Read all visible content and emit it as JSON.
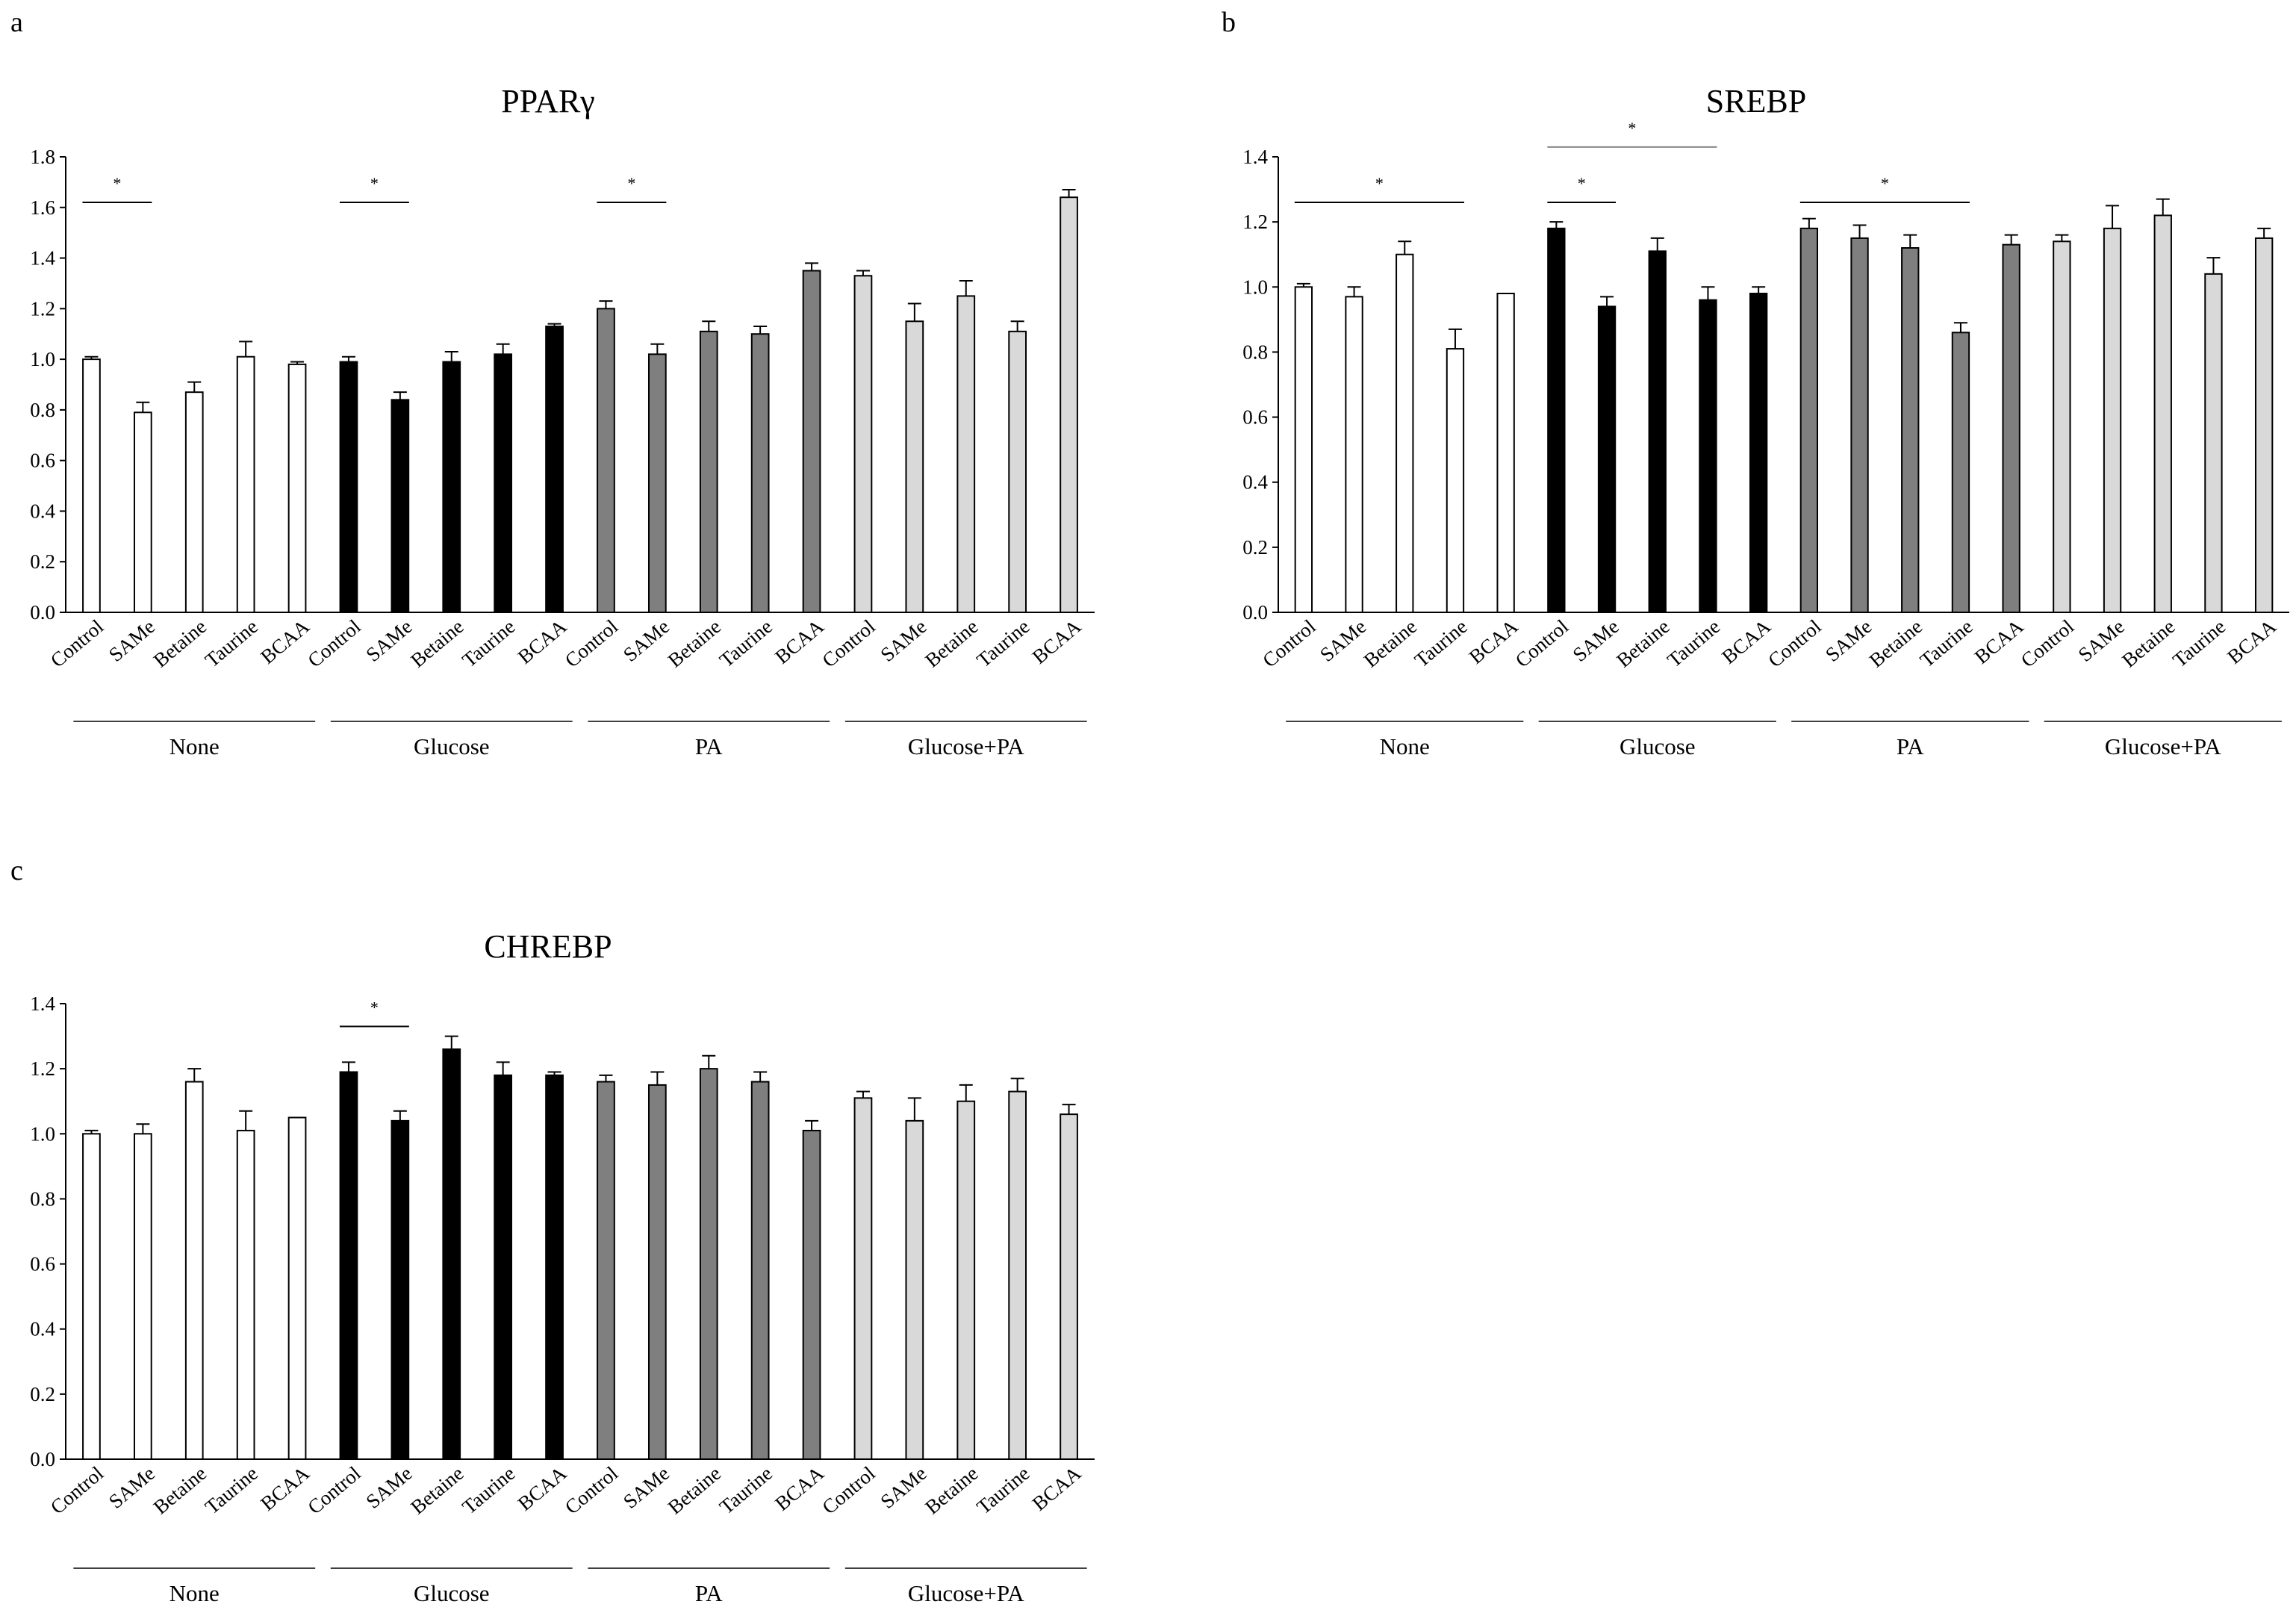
{
  "figure_colors": {
    "None": "#ffffff",
    "Glucose": "#000000",
    "PA": "#7f7f7f",
    "Glucose+PA": "#d9d9d9"
  },
  "chart_data": [
    {
      "panel": "a",
      "type": "bar",
      "title": "PPARγ",
      "ylim": [
        0,
        1.8
      ],
      "yticks": [
        "0.0",
        "0.2",
        "0.4",
        "0.6",
        "0.8",
        "1.0",
        "1.2",
        "1.4",
        "1.6",
        "1.8"
      ],
      "groups": [
        {
          "name": "None",
          "categories": [
            "Control",
            "SAMe",
            "Betaine",
            "Taurine",
            "BCAA"
          ],
          "values": [
            1.0,
            0.79,
            0.87,
            1.01,
            0.98
          ],
          "errors": [
            0.01,
            0.04,
            0.04,
            0.06,
            0.01
          ]
        },
        {
          "name": "Glucose",
          "categories": [
            "Control",
            "SAMe",
            "Betaine",
            "Taurine",
            "BCAA"
          ],
          "values": [
            0.99,
            0.84,
            0.99,
            1.02,
            1.13
          ],
          "errors": [
            0.02,
            0.03,
            0.04,
            0.04,
            0.01
          ]
        },
        {
          "name": "PA",
          "categories": [
            "Control",
            "SAMe",
            "Betaine",
            "Taurine",
            "BCAA"
          ],
          "values": [
            1.2,
            1.02,
            1.11,
            1.1,
            1.35
          ],
          "errors": [
            0.03,
            0.04,
            0.04,
            0.03,
            0.03
          ]
        },
        {
          "name": "Glucose+PA",
          "categories": [
            "Control",
            "SAMe",
            "Betaine",
            "Taurine",
            "BCAA"
          ],
          "values": [
            1.33,
            1.15,
            1.25,
            1.11,
            1.64
          ],
          "errors": [
            0.02,
            0.07,
            0.06,
            0.04,
            0.03
          ]
        }
      ],
      "annotations": [
        {
          "text": "*",
          "from_bar": 0,
          "to_bar": 1,
          "y": 1.62
        },
        {
          "text": "*",
          "from_bar": 5,
          "to_bar": 6,
          "y": 1.62
        },
        {
          "text": "*",
          "from_bar": 10,
          "to_bar": 11,
          "y": 1.62
        }
      ]
    },
    {
      "panel": "b",
      "type": "bar",
      "title": "SREBP",
      "ylim": [
        0,
        1.4
      ],
      "yticks": [
        "0.0",
        "0.2",
        "0.4",
        "0.6",
        "0.8",
        "1.0",
        "1.2",
        "1.4"
      ],
      "groups": [
        {
          "name": "None",
          "categories": [
            "Control",
            "SAMe",
            "Betaine",
            "Taurine",
            "BCAA"
          ],
          "values": [
            1.0,
            0.97,
            1.1,
            0.81,
            0.98
          ],
          "errors": [
            0.01,
            0.03,
            0.04,
            0.06,
            0.0
          ]
        },
        {
          "name": "Glucose",
          "categories": [
            "Control",
            "SAMe",
            "Betaine",
            "Taurine",
            "BCAA"
          ],
          "values": [
            1.18,
            0.94,
            1.11,
            0.96,
            0.98
          ],
          "errors": [
            0.02,
            0.03,
            0.04,
            0.04,
            0.02
          ]
        },
        {
          "name": "PA",
          "categories": [
            "Control",
            "SAMe",
            "Betaine",
            "Taurine",
            "BCAA"
          ],
          "values": [
            1.18,
            1.15,
            1.12,
            0.86,
            1.13
          ],
          "errors": [
            0.03,
            0.04,
            0.04,
            0.03,
            0.03
          ]
        },
        {
          "name": "Glucose+PA",
          "categories": [
            "Control",
            "SAMe",
            "Betaine",
            "Taurine",
            "BCAA"
          ],
          "values": [
            1.14,
            1.18,
            1.22,
            1.04,
            1.15
          ],
          "errors": [
            0.02,
            0.07,
            0.05,
            0.05,
            0.03
          ]
        }
      ],
      "annotations": [
        {
          "text": "*",
          "from_bar": 0,
          "to_bar": 3,
          "y": 1.26
        },
        {
          "text": "*",
          "from_bar": 5,
          "to_bar": 6,
          "y": 1.26
        },
        {
          "text": "*",
          "from_bar": 5,
          "to_bar": 8,
          "y": 1.43
        },
        {
          "text": "*",
          "from_bar": 10,
          "to_bar": 13,
          "y": 1.26
        }
      ]
    },
    {
      "panel": "c",
      "type": "bar",
      "title": "CHREBP",
      "ylim": [
        0,
        1.4
      ],
      "yticks": [
        "0.0",
        "0.2",
        "0.4",
        "0.6",
        "0.8",
        "1.0",
        "1.2",
        "1.4"
      ],
      "groups": [
        {
          "name": "None",
          "categories": [
            "Control",
            "SAMe",
            "Betaine",
            "Taurine",
            "BCAA"
          ],
          "values": [
            1.0,
            1.0,
            1.16,
            1.01,
            1.05
          ],
          "errors": [
            0.01,
            0.03,
            0.04,
            0.06,
            0.0
          ]
        },
        {
          "name": "Glucose",
          "categories": [
            "Control",
            "SAMe",
            "Betaine",
            "Taurine",
            "BCAA"
          ],
          "values": [
            1.19,
            1.04,
            1.26,
            1.18,
            1.18
          ],
          "errors": [
            0.03,
            0.03,
            0.04,
            0.04,
            0.01
          ]
        },
        {
          "name": "PA",
          "categories": [
            "Control",
            "SAMe",
            "Betaine",
            "Taurine",
            "BCAA"
          ],
          "values": [
            1.16,
            1.15,
            1.2,
            1.16,
            1.01
          ],
          "errors": [
            0.02,
            0.04,
            0.04,
            0.03,
            0.03
          ]
        },
        {
          "name": "Glucose+PA",
          "categories": [
            "Control",
            "SAMe",
            "Betaine",
            "Taurine",
            "BCAA"
          ],
          "values": [
            1.11,
            1.04,
            1.1,
            1.13,
            1.06
          ],
          "errors": [
            0.02,
            0.07,
            0.05,
            0.04,
            0.03
          ]
        }
      ],
      "annotations": [
        {
          "text": "*",
          "from_bar": 5,
          "to_bar": 6,
          "y": 1.33
        }
      ]
    }
  ]
}
